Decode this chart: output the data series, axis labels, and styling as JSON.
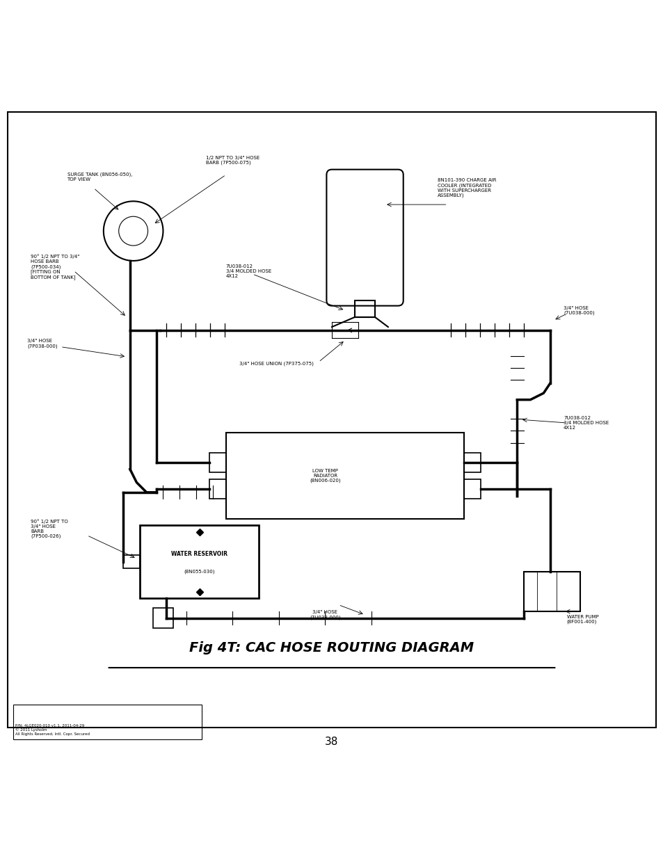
{
  "title": "Fig 4T: CAC HOSE ROUTING DIAGRAM",
  "page_number": "38",
  "footer_line1": "P/N: 4LGE020-010 v1.1, 2011-04-29",
  "footer_line2": "© 2011 Lysholm",
  "footer_line3": "All Rights Reserved, Intl. Copr. Secured",
  "bg_color": "#ffffff",
  "border_color": "#000000",
  "diagram_color": "#000000"
}
